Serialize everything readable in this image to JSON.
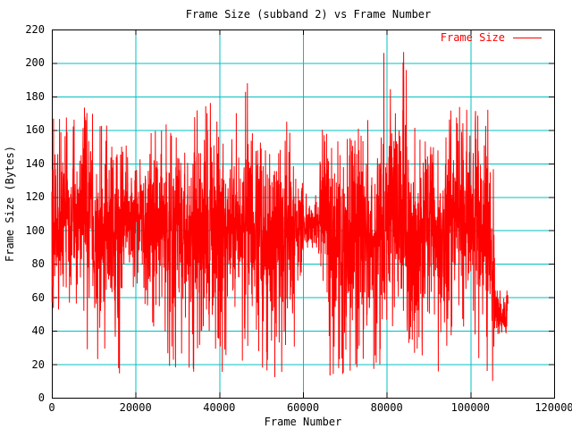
{
  "chart_data": {
    "type": "line",
    "title": "Frame Size (subband 2) vs Frame Number",
    "xlabel": "Frame Number",
    "ylabel": "Frame Size (Bytes)",
    "xlim": [
      0,
      120000
    ],
    "ylim": [
      0,
      220
    ],
    "x_ticks": [
      0,
      20000,
      40000,
      60000,
      80000,
      100000,
      120000
    ],
    "y_ticks": [
      0,
      20,
      40,
      60,
      80,
      100,
      120,
      140,
      160,
      180,
      200,
      220
    ],
    "grid": true,
    "legend_position": "top-right-inside",
    "colors": {
      "line": "#ff0000",
      "grid": "#00c0c0",
      "frame": "#000000",
      "background": "#ffffff",
      "text": "#000000",
      "legend_text": "#ff0000"
    },
    "series": [
      {
        "name": "Frame Size",
        "style": "lines",
        "x_data_range": [
          0,
          109000
        ],
        "sample_step": 40,
        "value_stats": {
          "mean": 103,
          "min": 9,
          "max": 207
        },
        "envelope_segments": [
          {
            "f0": 0,
            "f1": 6000,
            "mid": 107,
            "dev": 20,
            "lo": 48,
            "hi": 170,
            "p_lo": 0.02,
            "p_hi": 0.02
          },
          {
            "f0": 6000,
            "f1": 10000,
            "mid": 110,
            "dev": 24,
            "lo": 28,
            "hi": 177,
            "p_lo": 0.02,
            "p_hi": 0.03
          },
          {
            "f0": 10000,
            "f1": 14000,
            "mid": 100,
            "dev": 24,
            "lo": 18,
            "hi": 165,
            "p_lo": 0.03,
            "p_hi": 0.02
          },
          {
            "f0": 14000,
            "f1": 17000,
            "mid": 95,
            "dev": 27,
            "lo": 12,
            "hi": 150,
            "p_lo": 0.05,
            "p_hi": 0.01
          },
          {
            "f0": 17000,
            "f1": 22000,
            "mid": 107,
            "dev": 16,
            "lo": 60,
            "hi": 152,
            "p_lo": 0.01,
            "p_hi": 0.01
          },
          {
            "f0": 22000,
            "f1": 27000,
            "mid": 105,
            "dev": 20,
            "lo": 40,
            "hi": 160,
            "p_lo": 0.02,
            "p_hi": 0.02
          },
          {
            "f0": 27000,
            "f1": 34000,
            "mid": 98,
            "dev": 26,
            "lo": 14,
            "hi": 165,
            "p_lo": 0.05,
            "p_hi": 0.02
          },
          {
            "f0": 34000,
            "f1": 38000,
            "mid": 105,
            "dev": 24,
            "lo": 25,
            "hi": 178,
            "p_lo": 0.03,
            "p_hi": 0.03
          },
          {
            "f0": 38000,
            "f1": 42000,
            "mid": 100,
            "dev": 26,
            "lo": 15,
            "hi": 165,
            "p_lo": 0.05,
            "p_hi": 0.02
          },
          {
            "f0": 42000,
            "f1": 46000,
            "mid": 105,
            "dev": 22,
            "lo": 20,
            "hi": 170,
            "p_lo": 0.03,
            "p_hi": 0.02
          },
          {
            "f0": 46000,
            "f1": 50000,
            "mid": 108,
            "dev": 26,
            "lo": 25,
            "hi": 191,
            "p_lo": 0.03,
            "p_hi": 0.03
          },
          {
            "f0": 50000,
            "f1": 54000,
            "mid": 95,
            "dev": 28,
            "lo": 12,
            "hi": 160,
            "p_lo": 0.06,
            "p_hi": 0.02
          },
          {
            "f0": 54000,
            "f1": 58000,
            "mid": 100,
            "dev": 26,
            "lo": 15,
            "hi": 165,
            "p_lo": 0.04,
            "p_hi": 0.02
          },
          {
            "f0": 58000,
            "f1": 60000,
            "mid": 103,
            "dev": 14,
            "lo": 70,
            "hi": 140,
            "p_lo": 0.01,
            "p_hi": 0.01
          },
          {
            "f0": 60000,
            "f1": 64000,
            "mid": 103,
            "dev": 9,
            "lo": 85,
            "hi": 128,
            "p_lo": 0.01,
            "p_hi": 0.01
          },
          {
            "f0": 64000,
            "f1": 66000,
            "mid": 110,
            "dev": 18,
            "lo": 60,
            "hi": 163,
            "p_lo": 0.02,
            "p_hi": 0.03
          },
          {
            "f0": 66000,
            "f1": 72000,
            "mid": 95,
            "dev": 26,
            "lo": 13,
            "hi": 158,
            "p_lo": 0.06,
            "p_hi": 0.02
          },
          {
            "f0": 72000,
            "f1": 79000,
            "mid": 100,
            "dev": 26,
            "lo": 15,
            "hi": 168,
            "p_lo": 0.05,
            "p_hi": 0.02
          },
          {
            "f0": 79000,
            "f1": 85000,
            "mid": 115,
            "dev": 30,
            "lo": 35,
            "hi": 207,
            "p_lo": 0.02,
            "p_hi": 0.04
          },
          {
            "f0": 85000,
            "f1": 89000,
            "mid": 95,
            "dev": 28,
            "lo": 18,
            "hi": 165,
            "p_lo": 0.05,
            "p_hi": 0.02
          },
          {
            "f0": 89000,
            "f1": 92000,
            "mid": 105,
            "dev": 22,
            "lo": 40,
            "hi": 168,
            "p_lo": 0.02,
            "p_hi": 0.02
          },
          {
            "f0": 92000,
            "f1": 95000,
            "mid": 95,
            "dev": 27,
            "lo": 15,
            "hi": 160,
            "p_lo": 0.05,
            "p_hi": 0.02
          },
          {
            "f0": 95000,
            "f1": 99000,
            "mid": 108,
            "dev": 24,
            "lo": 30,
            "hi": 175,
            "p_lo": 0.03,
            "p_hi": 0.03
          },
          {
            "f0": 99000,
            "f1": 102000,
            "mid": 110,
            "dev": 24,
            "lo": 35,
            "hi": 172,
            "p_lo": 0.02,
            "p_hi": 0.03
          },
          {
            "f0": 102000,
            "f1": 105000,
            "mid": 95,
            "dev": 30,
            "lo": 10,
            "hi": 172,
            "p_lo": 0.07,
            "p_hi": 0.02
          },
          {
            "f0": 105000,
            "f1": 105800,
            "mid": 70,
            "dev": 25,
            "lo": 10,
            "hi": 140,
            "p_lo": 0.1,
            "p_hi": 0.01
          },
          {
            "f0": 105800,
            "f1": 109000,
            "mid": 50,
            "dev": 7,
            "lo": 38,
            "hi": 64,
            "p_lo": 0.02,
            "p_hi": 0.02
          }
        ]
      }
    ]
  }
}
